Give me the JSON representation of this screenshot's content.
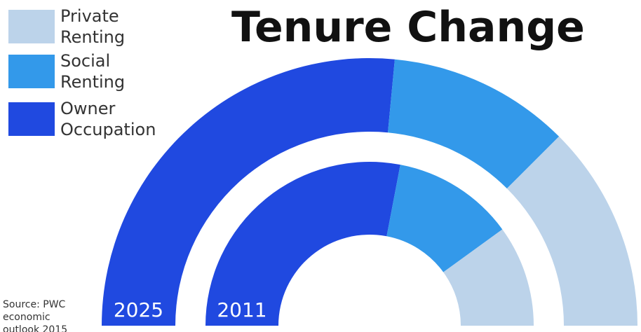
{
  "chart_data": {
    "type": "semi-donut",
    "title": "Tenure Change",
    "categories": [
      "Private Renting",
      "Social Renting",
      "Owner Occupation"
    ],
    "colors": [
      "#bcd3ea",
      "#3399ea",
      "#2049e0"
    ],
    "series": [
      {
        "name": "2025",
        "values": [
          25,
          22,
          53
        ]
      },
      {
        "name": "2011",
        "values": [
          20,
          24,
          56
        ]
      }
    ],
    "source": "Source: PWC economic outlook 2015"
  }
}
